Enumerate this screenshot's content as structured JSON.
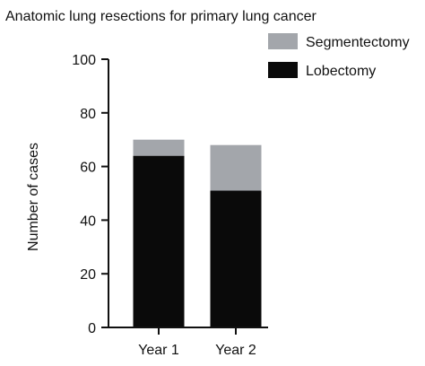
{
  "chart_data": {
    "type": "bar",
    "stacked": true,
    "title": "Anatomic lung resections for primary lung cancer",
    "xlabel": "",
    "ylabel": "Number of cases",
    "categories": [
      "Year 1",
      "Year 2"
    ],
    "series": [
      {
        "name": "Lobectomy",
        "values": [
          64,
          51
        ],
        "color": "#0a0a0a"
      },
      {
        "name": "Segmentectomy",
        "values": [
          6,
          17
        ],
        "color": "#a3a6ab"
      }
    ],
    "ylim": [
      0,
      100
    ],
    "yticks": [
      0,
      20,
      40,
      60,
      80,
      100
    ],
    "grid": false,
    "legend": "top-right",
    "legend_order": [
      "Segmentectomy",
      "Lobectomy"
    ]
  }
}
